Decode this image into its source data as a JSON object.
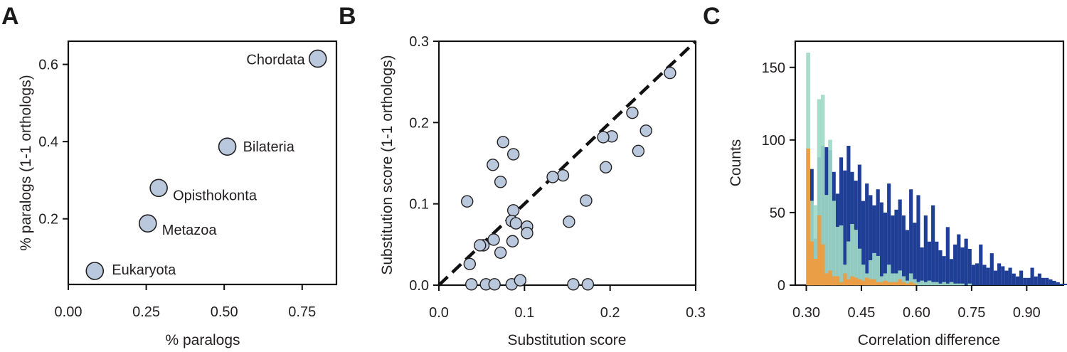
{
  "colors": {
    "marker_fill": "#b9c8dc",
    "marker_edge": "#231f20",
    "dashed_line": "#111111",
    "hist_blue": "#1f3f96",
    "hist_teal": "#9fd9c6",
    "hist_orange": "#f39a3a"
  },
  "chart_data": [
    {
      "panel": "A",
      "type": "scatter",
      "xlabel": "% paralogs",
      "ylabel": "% paralogs (1-1 orthologs)",
      "xlim": [
        0.0,
        0.86
      ],
      "ylim": [
        0.03,
        0.66
      ],
      "xticks": [
        0.0,
        0.25,
        0.5,
        0.75
      ],
      "xtick_labels": [
        "0.00",
        "0.25",
        "0.50",
        "0.75"
      ],
      "yticks": [
        0.2,
        0.4,
        0.6
      ],
      "ytick_labels": [
        "0.2",
        "0.4",
        "0.6"
      ],
      "points": [
        {
          "label": "Chordata",
          "x": 0.8,
          "y": 0.615
        },
        {
          "label": "Bilateria",
          "x": 0.51,
          "y": 0.387
        },
        {
          "label": "Opisthokonta",
          "x": 0.29,
          "y": 0.28
        },
        {
          "label": "Metazoa",
          "x": 0.255,
          "y": 0.188
        },
        {
          "label": "Eukaryota",
          "x": 0.085,
          "y": 0.065
        }
      ]
    },
    {
      "panel": "B",
      "type": "scatter",
      "xlabel": "Substitution score",
      "ylabel": "Substitution score (1-1 orthologs)",
      "xlim": [
        0.0,
        0.3
      ],
      "ylim": [
        0.0,
        0.3
      ],
      "xticks": [
        0.0,
        0.1,
        0.2,
        0.3
      ],
      "xtick_labels": [
        "0.0",
        "0.1",
        "0.2",
        "0.3"
      ],
      "yticks": [
        0.0,
        0.1,
        0.2,
        0.3
      ],
      "ytick_labels": [
        "0.0",
        "0.1",
        "0.2",
        "0.3"
      ],
      "reference_line": "y = x (dashed)",
      "x": [
        0.27,
        0.226,
        0.242,
        0.202,
        0.192,
        0.233,
        0.195,
        0.145,
        0.133,
        0.172,
        0.152,
        0.075,
        0.087,
        0.063,
        0.072,
        0.087,
        0.085,
        0.09,
        0.103,
        0.103,
        0.086,
        0.064,
        0.052,
        0.048,
        0.072,
        0.036,
        0.033,
        0.038,
        0.055,
        0.065,
        0.085,
        0.095,
        0.157,
        0.174
      ],
      "y": [
        0.261,
        0.212,
        0.19,
        0.183,
        0.182,
        0.165,
        0.145,
        0.135,
        0.133,
        0.104,
        0.078,
        0.176,
        0.161,
        0.148,
        0.127,
        0.092,
        0.079,
        0.076,
        0.072,
        0.064,
        0.054,
        0.056,
        0.049,
        0.049,
        0.04,
        0.026,
        0.103,
        0.001,
        0.001,
        0.001,
        0.001,
        0.006,
        0.001,
        0.001
      ]
    },
    {
      "panel": "C",
      "type": "histogram",
      "xlabel": "Correlation difference",
      "ylabel": "Counts",
      "xlim": [
        0.27,
        1.0
      ],
      "ylim": [
        0,
        168
      ],
      "xticks": [
        0.3,
        0.45,
        0.6,
        0.75,
        0.9
      ],
      "xtick_labels": [
        "0.30",
        "0.45",
        "0.60",
        "0.75",
        "0.90"
      ],
      "yticks": [
        0,
        50,
        100,
        150
      ],
      "ytick_labels": [
        "0",
        "50",
        "100",
        "150"
      ],
      "bin_start": 0.3,
      "bin_width": 0.01,
      "series": [
        {
          "name": "blue",
          "values": [
            92,
            80,
            32,
            88,
            96,
            95,
            93,
            78,
            63,
            88,
            79,
            96,
            78,
            72,
            83,
            58,
            70,
            62,
            55,
            66,
            57,
            50,
            70,
            48,
            52,
            59,
            48,
            38,
            66,
            43,
            62,
            26,
            48,
            30,
            55,
            30,
            24,
            20,
            40,
            18,
            28,
            35,
            26,
            32,
            25,
            14,
            15,
            28,
            14,
            12,
            22,
            10,
            15,
            13,
            10,
            12,
            8,
            6,
            10,
            5,
            5,
            12,
            6,
            8,
            5,
            5,
            4,
            3,
            2,
            1,
            1,
            1
          ]
        },
        {
          "name": "teal",
          "values": [
            160,
            58,
            55,
            128,
            131,
            62,
            100,
            58,
            40,
            41,
            14,
            30,
            42,
            38,
            25,
            14,
            8,
            17,
            22,
            20,
            6,
            8,
            14,
            8,
            8,
            10,
            6,
            3,
            8,
            4,
            2,
            3,
            2,
            3,
            2,
            2,
            1,
            2,
            1,
            2,
            1,
            1,
            1,
            0,
            1
          ]
        },
        {
          "name": "orange",
          "values": [
            94,
            30,
            18,
            48,
            28,
            8,
            10,
            6,
            6,
            2,
            8,
            4,
            6,
            5,
            4,
            3,
            5,
            4,
            4,
            2,
            2,
            3,
            2,
            2,
            2,
            4,
            2,
            1,
            2,
            1
          ]
        }
      ]
    }
  ],
  "panels": {
    "a": {
      "letter": "A",
      "xlabel": "% paralogs",
      "ylabel": "% paralogs (1-1 orthologs)"
    },
    "b": {
      "letter": "B",
      "xlabel": "Substitution score",
      "ylabel": "Substitution score (1-1 orthologs)"
    },
    "c": {
      "letter": "C",
      "xlabel": "Correlation difference",
      "ylabel": "Counts"
    }
  }
}
